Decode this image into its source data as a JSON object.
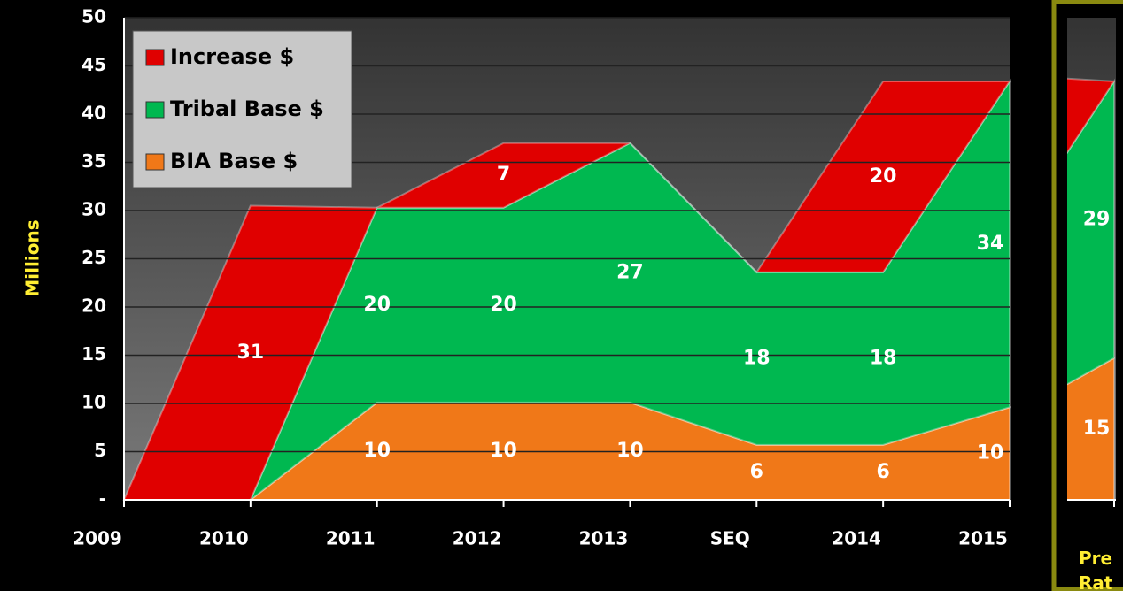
{
  "chart_data": [
    {
      "type": "area",
      "ylabel": "Millions",
      "categories": [
        "2009",
        "2010",
        "2011",
        "2012",
        "2013",
        "SEQ",
        "2014",
        "2015"
      ],
      "ylim": [
        0,
        50
      ],
      "yticks": [
        {
          "value": 0,
          "label": "-"
        },
        5,
        10,
        15,
        20,
        25,
        30,
        35,
        40,
        45,
        50
      ],
      "grid": true,
      "legend": "upper left",
      "series": [
        {
          "name": "BIA Base $",
          "color": "#f07818",
          "values": [
            0,
            0,
            10.1,
            10.1,
            10.1,
            5.7,
            5.7,
            9.6
          ],
          "value_labels": [
            null,
            null,
            "10",
            "10",
            "10",
            "6",
            "6",
            "10"
          ]
        },
        {
          "name": "Tribal Base $",
          "color": "#00b850",
          "values": [
            0,
            0,
            20.2,
            20.2,
            26.9,
            17.9,
            17.9,
            33.8
          ],
          "value_labels": [
            null,
            null,
            "20",
            "20",
            "27",
            "18",
            "18",
            "34"
          ]
        },
        {
          "name": "Increase $",
          "color": "#e00000",
          "values": [
            0,
            30.5,
            0,
            6.7,
            0,
            0,
            19.8,
            0
          ],
          "value_labels": [
            null,
            "31",
            null,
            "7",
            null,
            null,
            "20",
            null
          ]
        }
      ]
    },
    {
      "type": "area",
      "categories": [
        null,
        "Pre Rat"
      ],
      "ylim": [
        0,
        50
      ],
      "series": [
        {
          "name": "BIA Base $",
          "color": "#f07818",
          "values": [
            7.4,
            14.7
          ],
          "value_labels": [
            null,
            "15"
          ]
        },
        {
          "name": "Tribal Base $",
          "color": "#00b850",
          "values": [
            16.1,
            28.7
          ],
          "value_labels": [
            null,
            "29"
          ]
        },
        {
          "name": "Increase $",
          "color": "#e00000",
          "values": [
            20.7,
            0
          ],
          "value_labels": [
            null,
            null
          ]
        }
      ]
    }
  ]
}
